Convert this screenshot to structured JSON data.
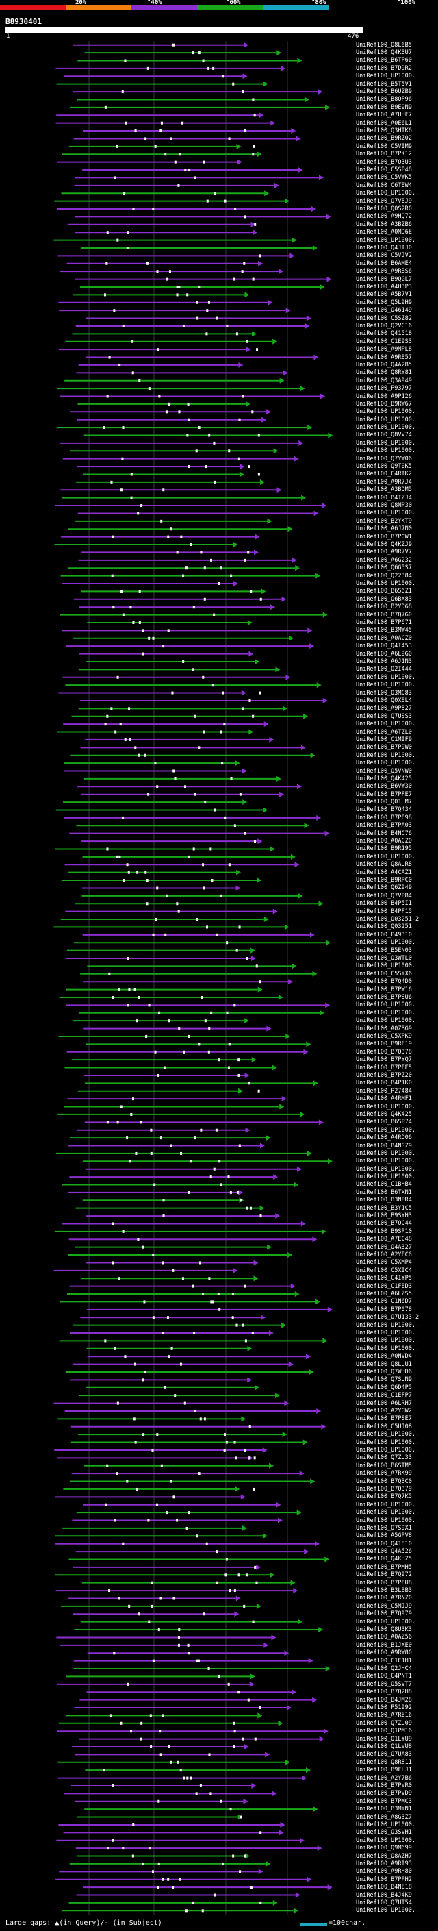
{
  "header": {
    "percent_labels": [
      "20%",
      "^40%",
      "^60%",
      "^80%",
      "^100%"
    ],
    "colors": [
      "#e3111b",
      "#f07f0f",
      "#8b2fd0",
      "#19a819",
      "#1aa6c2"
    ]
  },
  "query": {
    "name": "B8930401",
    "start": "1",
    "end": "476"
  },
  "hits": [
    "UniRef100_Q8L6B5",
    "UniRef100_Q4KBU7",
    "UniRef100_B6TP60",
    "UniRef100_B7D9R2",
    "UniRef100_UP1000..",
    "UniRef100_B5T5V1",
    "UniRef100_B6UZB9",
    "UniRef100_B8QP96",
    "UniRef100_B9E9N9",
    "UniRef100_A7UHF7",
    "UniRef100_A0E6L1",
    "UniRef100_Q3HTK6",
    "UniRef100_B9RZ02",
    "UniRef100_C5VIM9",
    "UniRef100_B7PK12",
    "UniRef100_B7Q3U3",
    "UniRef100_C5SP48",
    "UniRef100_C5VWK5",
    "UniRef100_C6TEW4",
    "UniRef100_UP1000..",
    "UniRef100_Q7VEJ9",
    "UniRef100_Q0S2R0",
    "UniRef100_A9HQ72",
    "UniRef100_A3BZB6",
    "UniRef100_A0MD6E",
    "UniRef100_UP1000..",
    "UniRef100_Q4JIJ0",
    "UniRef100_C5VJV2",
    "UniRef100_B6AME4",
    "UniRef100_A9RBS6",
    "UniRef100_B9QGL7",
    "UniRef100_A4H3P3",
    "UniRef100_A5B7V1",
    "UniRef100_Q5L9H9",
    "UniRef100_Q46149",
    "UniRef100_C5SZ82",
    "UniRef100_Q2VC16",
    "UniRef100_Q41518",
    "UniRef100_C1E9S3",
    "UniRef100_A9MPL8",
    "UniRef100_A9RE57",
    "UniRef100_Q4A2B5",
    "UniRef100_Q8RY81",
    "UniRef100_Q3A949",
    "UniRef100_P93797",
    "UniRef100_A9P126",
    "UniRef100_B9RW67",
    "UniRef100_UP1000..",
    "UniRef100_UP1000..",
    "UniRef100_UP1000..",
    "UniRef100_Q8VV74",
    "UniRef100_UP1000..",
    "UniRef100_UP1000..",
    "UniRef100_Q7YW06",
    "UniRef100_Q9T0K5",
    "UniRef100_C4RTK2",
    "UniRef100_A9R7J4",
    "UniRef100_A3BDM5",
    "UniRef100_B4IZJ4",
    "UniRef100_Q8MP30",
    "UniRef100_UP1000..",
    "UniRef100_B2YKT9",
    "UniRef100_A6J7N0",
    "UniRef100_B7P0W1",
    "UniRef100_Q4KZJ9",
    "UniRef100_A9R7V7",
    "UniRef100_A6G232",
    "UniRef100_Q6G5S7",
    "UniRef100_Q22384",
    "UniRef100_UP1000..",
    "UniRef100_B6S6Z1",
    "UniRef100_Q6BX83",
    "UniRef100_B2YD68",
    "UniRef100_B7Q7G0",
    "UniRef100_B7P671",
    "UniRef100_B3MW45",
    "UniRef100_A0ACZ0",
    "UniRef100_Q4I453",
    "UniRef100_A6L9G0",
    "UniRef100_A6J1N3",
    "UniRef100_Q2I444",
    "UniRef100_UP1000..",
    "UniRef100_UP1000..",
    "UniRef100_Q3MC83",
    "UniRef100_Q0XEL4",
    "UniRef100_A9P827",
    "UniRef100_Q7USS3",
    "UniRef100_UP1000..",
    "UniRef100_A6TZL0",
    "UniRef100_C1MIF9",
    "UniRef100_B7P9W0",
    "UniRef100_UP1000..",
    "UniRef100_UP1000..",
    "UniRef100_Q5VNW0",
    "UniRef100_Q4K425",
    "UniRef100_B6VW30",
    "UniRef100_B7PFE7",
    "UniRef100_Q01UM7",
    "UniRef100_B7Q434",
    "UniRef100_B7PE98",
    "UniRef100_B7PA03",
    "UniRef100_B4NC76",
    "UniRef100_A0ACZ0",
    "UniRef100_B9R195",
    "UniRef100_UP1000..",
    "UniRef100_Q8AUR8",
    "UniRef100_A4CAZ1",
    "UniRef100_B9RPC0",
    "UniRef100_Q6Z949",
    "UniRef100_Q7VPB4",
    "UniRef100_B4P5I1",
    "UniRef100_B4PF15",
    "UniRef100_Q03251-2",
    "UniRef100_Q03251",
    "UniRef100_P49310",
    "UniRef100_UP1000..",
    "UniRef100_B5EN03",
    "UniRef100_Q3WTL0",
    "UniRef100_UP1000..",
    "UniRef100_C5SYX6",
    "UniRef100_B7Q4D0",
    "UniRef100_B7PW16",
    "UniRef100_B7PSU6",
    "UniRef100_UP1000..",
    "UniRef100_UP1000..",
    "UniRef100_UP1000..",
    "UniRef100_A0ZBG9",
    "UniRef100_C5XPK9",
    "UniRef100_B9RF19",
    "UniRef100_B7Q378",
    "UniRef100_B7PYQ7",
    "UniRef100_B7PFE5",
    "UniRef100_B7PZ20",
    "UniRef100_B4P1K0",
    "UniRef100_P27484",
    "UniRef100_A4RMF1",
    "UniRef100_UP1000..",
    "UniRef100_Q4K425",
    "UniRef100_B6SP74",
    "UniRef100_UP1000..",
    "UniRef100_A4RD06",
    "UniRef100_B4NSZ9",
    "UniRef100_UP1000..",
    "UniRef100_UP1000..",
    "UniRef100_UP1000..",
    "UniRef100_UP1000..",
    "UniRef100_C1BHB4",
    "UniRef100_B6TXN1",
    "UniRef100_B3NPR4",
    "UniRef100_B3Y1C5",
    "UniRef100_B9SYH3",
    "UniRef100_B7QC44",
    "UniRef100_B9SP10",
    "UniRef100_A7EC48",
    "UniRef100_Q4A327",
    "UniRef100_A2YFC6",
    "UniRef100_C5XMP4",
    "UniRef100_C5XIC4",
    "UniRef100_C4IYP5",
    "UniRef100_C1FED3",
    "UniRef100_A6LZS5",
    "UniRef100_C1N6D7",
    "UniRef100_B7P078",
    "UniRef100_Q7U133-2",
    "UniRef100_UP1000..",
    "UniRef100_UP1000..",
    "UniRef100_UP1000..",
    "UniRef100_UP1000..",
    "UniRef100_A0NVD4",
    "UniRef100_Q8LUU1",
    "UniRef100_Q7WHD6",
    "UniRef100_Q7SUN9",
    "UniRef100_Q6D4P5",
    "UniRef100_C1EFP7",
    "UniRef100_A6LRH7",
    "UniRef100_A2YGW2",
    "UniRef100_B7PSE7",
    "UniRef100_C5UJ08",
    "UniRef100_UP1000..",
    "UniRef100_UP1000..",
    "UniRef100_UP1000..",
    "UniRef100_Q7ZU33",
    "UniRef100_B6STM5",
    "UniRef100_A7RK99",
    "UniRef100_B7QBC0",
    "UniRef100_B7Q379",
    "UniRef100_B7Q7K5",
    "UniRef100_UP1000..",
    "UniRef100_UP1000..",
    "UniRef100_UP1000..",
    "UniRef100_Q7S9X1",
    "UniRef100_A5GPV8",
    "UniRef100_Q41810",
    "UniRef100_Q4A526",
    "UniRef100_Q4KHZ5",
    "UniRef100_B7PMH5",
    "UniRef100_B7Q972",
    "UniRef100_B7PEU8",
    "UniRef100_B3LBB3",
    "UniRef100_A7RNZ0",
    "UniRef100_C5MJJ9",
    "UniRef100_B7Q979",
    "UniRef100_UP1000..",
    "UniRef100_Q8U3K3",
    "UniRef100_A0AZ56",
    "UniRef100_B1JXE0",
    "UniRef100_A9RW80",
    "UniRef100_C1E1H1",
    "UniRef100_Q2JHC4",
    "UniRef100_C4PNT1",
    "UniRef100_Q5SVT7",
    "UniRef100_B7Q2H8",
    "UniRef100_B4JM28",
    "UniRef100_P51992",
    "UniRef100_A7RE16",
    "UniRef100_Q7ZU09",
    "UniRef100_Q1PM16",
    "UniRef100_Q1LYU9",
    "UniRef100_Q1LVU8",
    "UniRef100_Q7UA83",
    "UniRef100_Q8R811",
    "UniRef100_B9FLJ1",
    "UniRef100_A2Y7B6",
    "UniRef100_B7PVR0",
    "UniRef100_B7PVD9",
    "UniRef100_B7PMC3",
    "UniRef100_B3MYN1",
    "UniRef100_A8G3Z7",
    "UniRef100_UP1000..",
    "UniRef100_Q3SVH1",
    "UniRef100_UP1000..",
    "UniRef100_Q9M699",
    "UniRef100_Q8AZH7",
    "UniRef100_A9RI93",
    "UniRef100_A9RH80",
    "UniRef100_B7PPH2",
    "UniRef100_B4NE18",
    "UniRef100_B4J4K9",
    "UniRef100_Q7UT54",
    "UniRef100_UP1000.."
  ],
  "footer": {
    "legend": "Large gaps: ▲(in Query)/- (in Subject)",
    "scale": "=100char."
  }
}
